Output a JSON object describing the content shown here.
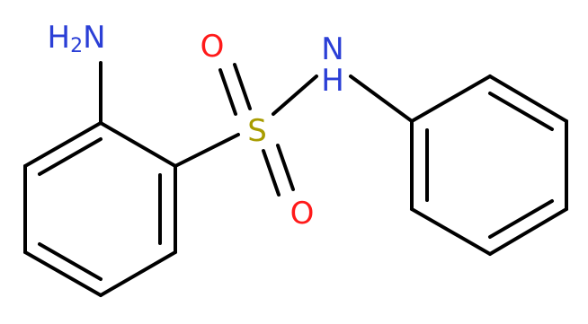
{
  "labels": {
    "amine": [
      "H",
      "2",
      "N"
    ],
    "oxygen_top": "O",
    "sulfur": "S",
    "oxygen_bottom": "O",
    "nitrogen": "N",
    "hydrogen": "H"
  }
}
